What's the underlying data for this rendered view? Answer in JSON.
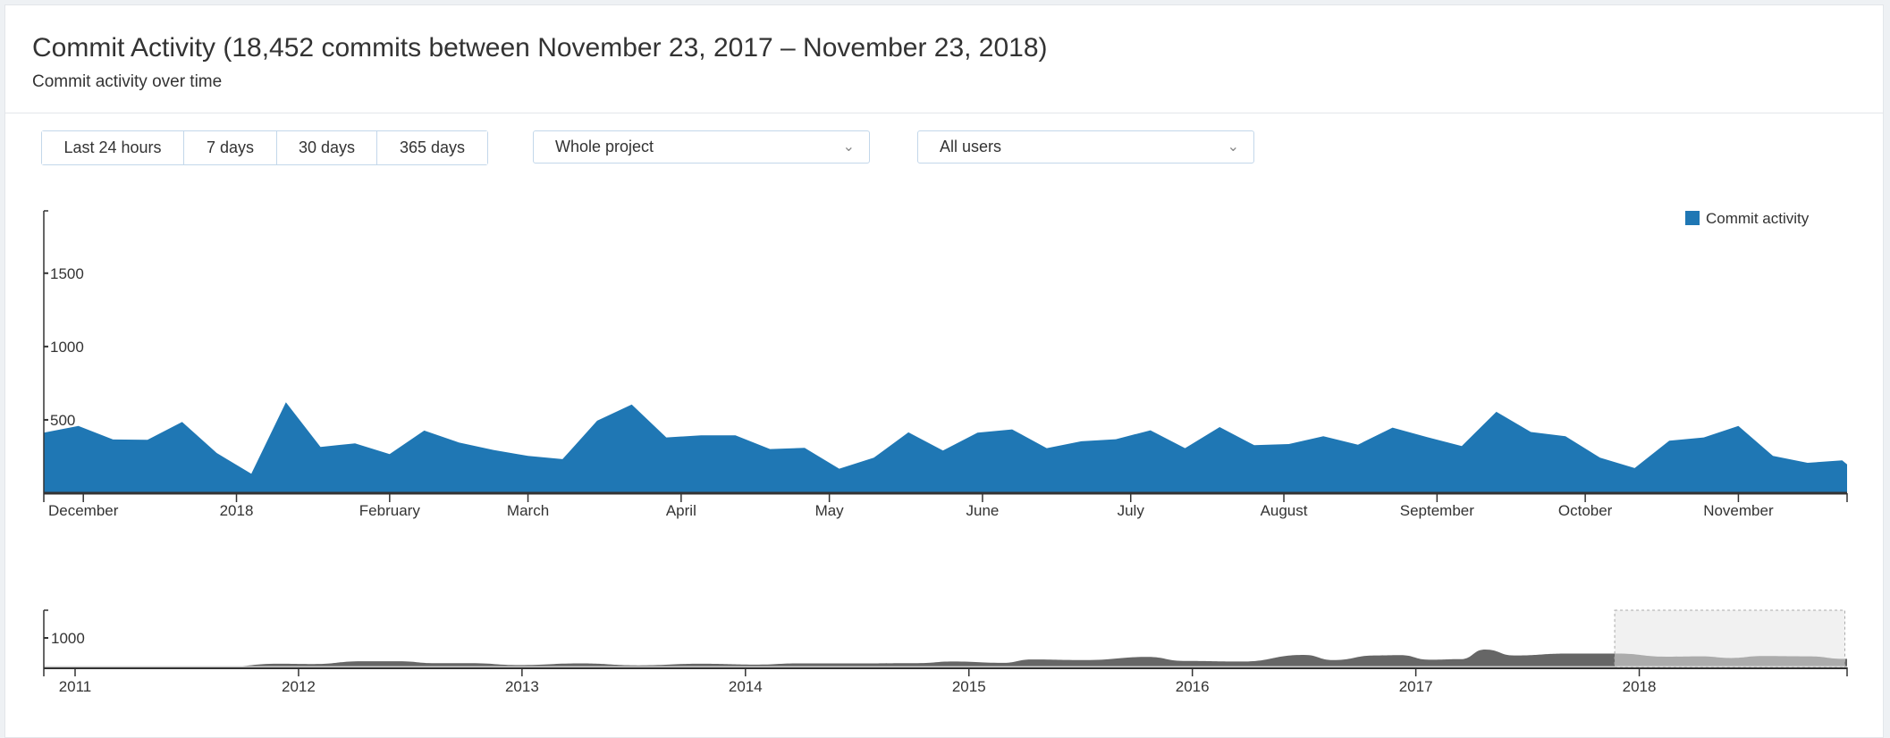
{
  "header": {
    "title": "Commit Activity (18,452 commits between November 23, 2017 – November 23, 2018)",
    "subtitle": "Commit activity over time"
  },
  "filters": {
    "range_buttons": [
      "Last 24 hours",
      "7 days",
      "30 days",
      "365 days"
    ],
    "scope_select": "Whole project",
    "user_select": "All users",
    "chevron_icon": "chevron-down-icon"
  },
  "chart_data": [
    {
      "type": "area",
      "legend": [
        "Commit activity"
      ],
      "legend_placement": "top-right",
      "color": "#1f77b4",
      "ylim": [
        0,
        1925
      ],
      "xlim": [
        "2017-11-23",
        "2018-11-23"
      ],
      "y_ticks": [
        500,
        1000,
        1500
      ],
      "x_ticks": [
        {
          "label": "December",
          "date": "2017-12-01"
        },
        {
          "label": "2018",
          "date": "2018-01-01"
        },
        {
          "label": "February",
          "date": "2018-02-01"
        },
        {
          "label": "March",
          "date": "2018-03-01"
        },
        {
          "label": "April",
          "date": "2018-04-01"
        },
        {
          "label": "May",
          "date": "2018-05-01"
        },
        {
          "label": "June",
          "date": "2018-06-01"
        },
        {
          "label": "July",
          "date": "2018-07-01"
        },
        {
          "label": "August",
          "date": "2018-08-01"
        },
        {
          "label": "September",
          "date": "2018-09-01"
        },
        {
          "label": "October",
          "date": "2018-10-01"
        },
        {
          "label": "November",
          "date": "2018-11-01"
        }
      ],
      "x": [
        "2017-11-23",
        "2017-11-30",
        "2017-12-07",
        "2017-12-14",
        "2017-12-21",
        "2017-12-28",
        "2018-01-04",
        "2018-01-11",
        "2018-01-18",
        "2018-01-25",
        "2018-02-01",
        "2018-02-08",
        "2018-02-15",
        "2018-02-22",
        "2018-03-01",
        "2018-03-08",
        "2018-03-15",
        "2018-03-22",
        "2018-03-29",
        "2018-04-05",
        "2018-04-12",
        "2018-04-19",
        "2018-04-26",
        "2018-05-03",
        "2018-05-10",
        "2018-05-17",
        "2018-05-24",
        "2018-05-31",
        "2018-06-07",
        "2018-06-14",
        "2018-06-21",
        "2018-06-28",
        "2018-07-05",
        "2018-07-12",
        "2018-07-19",
        "2018-07-26",
        "2018-08-02",
        "2018-08-09",
        "2018-08-16",
        "2018-08-23",
        "2018-08-30",
        "2018-09-06",
        "2018-09-13",
        "2018-09-20",
        "2018-09-27",
        "2018-10-04",
        "2018-10-11",
        "2018-10-18",
        "2018-10-25",
        "2018-11-01",
        "2018-11-08",
        "2018-11-15",
        "2018-11-22",
        "2018-11-23"
      ],
      "values": [
        413,
        459,
        366,
        364,
        486,
        274,
        132,
        620,
        315,
        340,
        266,
        427,
        346,
        295,
        254,
        232,
        494,
        604,
        380,
        394,
        394,
        301,
        309,
        167,
        242,
        415,
        291,
        413,
        435,
        307,
        354,
        368,
        429,
        307,
        451,
        327,
        335,
        388,
        331,
        447,
        382,
        321,
        555,
        417,
        388,
        242,
        171,
        358,
        380,
        459,
        254,
        207,
        224,
        197
      ]
    },
    {
      "type": "area",
      "color": "#666666",
      "ylim": [
        0,
        1940
      ],
      "xlim": [
        2010.86,
        2018.93
      ],
      "y_ticks": [
        1000
      ],
      "x_ticks": [
        2011,
        2012,
        2013,
        2014,
        2015,
        2016,
        2017,
        2018
      ],
      "x_years": [
        2010.88,
        2011.2,
        2011.47,
        2011.66,
        2011.91,
        2012.07,
        2012.28,
        2012.45,
        2012.61,
        2012.77,
        2012.99,
        2013.26,
        2013.52,
        2013.8,
        2014.06,
        2014.23,
        2014.45,
        2014.77,
        2014.93,
        2015.15,
        2015.28,
        2015.52,
        2015.8,
        2015.96,
        2016.22,
        2016.5,
        2016.63,
        2016.82,
        2016.93,
        2017.06,
        2017.2,
        2017.31,
        2017.44,
        2017.68,
        2017.9,
        2018.12,
        2018.28,
        2018.41,
        2018.55,
        2018.76,
        2018.92
      ],
      "values": [
        10,
        30,
        40,
        20,
        125,
        115,
        210,
        210,
        145,
        145,
        80,
        135,
        70,
        125,
        95,
        135,
        135,
        145,
        200,
        155,
        270,
        250,
        355,
        220,
        200,
        425,
        250,
        405,
        415,
        260,
        280,
        605,
        405,
        470,
        470,
        365,
        375,
        320,
        385,
        375,
        290
      ],
      "brush_selection": [
        2017.89,
        2018.92
      ]
    }
  ]
}
